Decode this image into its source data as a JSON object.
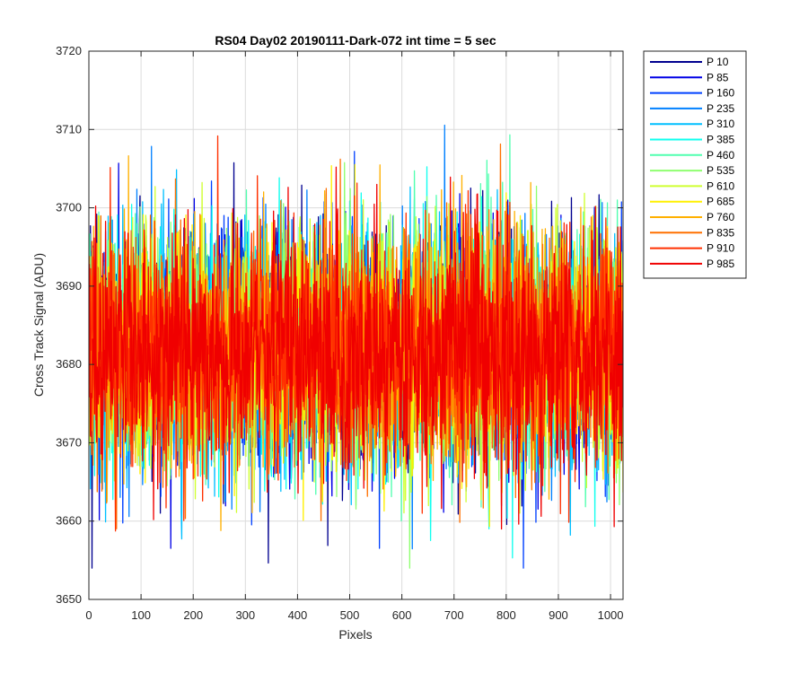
{
  "chart_data": {
    "type": "line",
    "title": "RS04 Day02 20190111-Dark-072 int time = 5 sec",
    "xlabel": "Pixels",
    "ylabel": "Cross Track Signal (ADU)",
    "xlim": [
      0,
      1024
    ],
    "ylim": [
      3650,
      3720
    ],
    "xticks": [
      0,
      100,
      200,
      300,
      400,
      500,
      600,
      700,
      800,
      900,
      1000
    ],
    "yticks": [
      3650,
      3660,
      3670,
      3680,
      3690,
      3700,
      3710,
      3720
    ],
    "xtick_labels": [
      "0",
      "100",
      "200",
      "300",
      "400",
      "500",
      "600",
      "700",
      "800",
      "900",
      "1000"
    ],
    "ytick_labels": [
      "3650",
      "3660",
      "3670",
      "3680",
      "3690",
      "3700",
      "3710",
      "3720"
    ],
    "grid": true,
    "legend_position": "outside-top-right",
    "noise_mean": 3682,
    "series": [
      {
        "name": "P 10",
        "color": "#00008f"
      },
      {
        "name": "P 85",
        "color": "#0000e6"
      },
      {
        "name": "P 160",
        "color": "#0040ff"
      },
      {
        "name": "P 235",
        "color": "#0080ff"
      },
      {
        "name": "P 310",
        "color": "#00bfff"
      },
      {
        "name": "P 385",
        "color": "#10ffef"
      },
      {
        "name": "P 460",
        "color": "#50ffaf"
      },
      {
        "name": "P 535",
        "color": "#8fff70"
      },
      {
        "name": "P 610",
        "color": "#cfff30"
      },
      {
        "name": "P 685",
        "color": "#fff000"
      },
      {
        "name": "P 760",
        "color": "#ffb000"
      },
      {
        "name": "P 835",
        "color": "#ff7000"
      },
      {
        "name": "P 910",
        "color": "#ff3000"
      },
      {
        "name": "P 985",
        "color": "#f00000"
      }
    ]
  }
}
